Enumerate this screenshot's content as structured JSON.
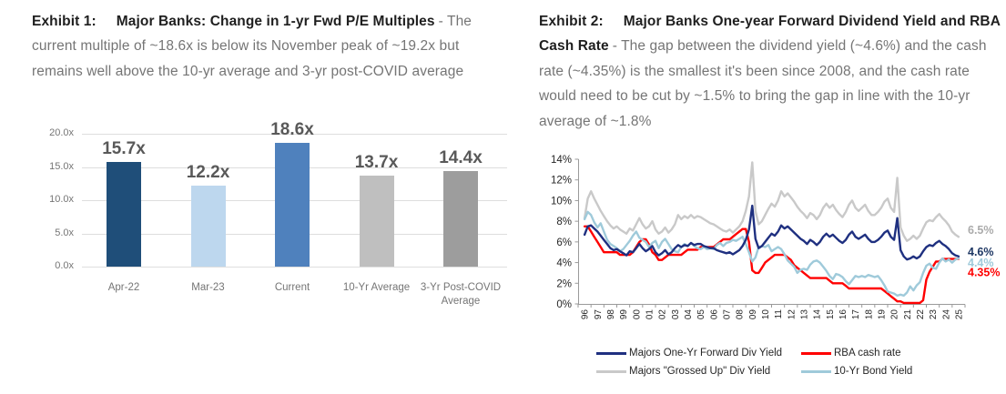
{
  "exhibit1": {
    "label": "Exhibit 1:",
    "title": "Major Banks: Change in 1-yr Fwd P/E Multiples",
    "description": "- The current multiple of ~18.6x is below its November peak of ~19.2x but remains well above the 10-yr average and 3-yr post-COVID average"
  },
  "exhibit2": {
    "label": "Exhibit 2:",
    "title": "Major Banks One-year Forward Dividend Yield and RBA Cash Rate",
    "description": "- The gap between the dividend yield (~4.6%) and the cash rate (~4.35%) is the smallest it's been since 2008, and the cash rate would need to be cut by ~1.5% to bring the gap in line with the 10-yr average of ~1.8%"
  },
  "chart_data": [
    {
      "type": "bar",
      "title": "Major Banks: Change in 1-yr Fwd P/E Multiples",
      "categories": [
        "Apr-22",
        "Mar-23",
        "Current",
        "10-Yr Average",
        "3-Yr Post-COVID Average"
      ],
      "values": [
        15.7,
        12.2,
        18.6,
        13.7,
        14.4
      ],
      "data_labels": [
        "15.7x",
        "12.2x",
        "18.6x",
        "13.7x",
        "14.4x"
      ],
      "bar_colors": [
        "#1f4e79",
        "#bdd7ee",
        "#4f81bd",
        "#bfbfbf",
        "#9d9d9d"
      ],
      "ylim": [
        0,
        20
      ],
      "y_ticks": [
        {
          "v": 0,
          "label": "0.0x"
        },
        {
          "v": 5,
          "label": "5.0x"
        },
        {
          "v": 10,
          "label": "10.0x"
        },
        {
          "v": 15,
          "label": "15.0x"
        },
        {
          "v": 20,
          "label": "20.0x"
        }
      ],
      "grid": true
    },
    {
      "type": "line",
      "title": "Major Banks One-year Forward Dividend Yield and RBA Cash Rate",
      "ylim": [
        0,
        14
      ],
      "y_ticks": [
        "0%",
        "2%",
        "4%",
        "6%",
        "8%",
        "10%",
        "12%",
        "14%"
      ],
      "x_tick_labels": [
        "96",
        "97",
        "98",
        "99",
        "00",
        "01",
        "02",
        "03",
        "04",
        "05",
        "06",
        "07",
        "08",
        "09",
        "10",
        "11",
        "12",
        "13",
        "14",
        "15",
        "16",
        "17",
        "18",
        "19",
        "20",
        "21",
        "22",
        "23",
        "24",
        "25"
      ],
      "x_range": [
        1996,
        2025
      ],
      "grid": false,
      "legend_position": "bottom",
      "series": [
        {
          "name": "Majors \"Grossed Up\" Div Yield",
          "color": "#c9c9c9",
          "end_label": "6.5%",
          "end_label_color": "#ababab",
          "x0": 1996,
          "dx": 0.25,
          "values": [
            8.3,
            10.2,
            10.9,
            10.2,
            9.6,
            9.0,
            8.5,
            8.0,
            7.6,
            7.3,
            7.5,
            7.2,
            7.0,
            6.8,
            7.3,
            7.1,
            7.7,
            8.3,
            7.7,
            7.3,
            7.5,
            8.0,
            7.2,
            6.8,
            7.0,
            7.4,
            6.9,
            7.2,
            7.7,
            8.6,
            8.2,
            8.5,
            8.3,
            8.6,
            8.3,
            8.5,
            8.4,
            8.2,
            8.0,
            7.8,
            7.7,
            7.5,
            7.3,
            7.1,
            7.0,
            7.2,
            6.9,
            7.2,
            7.5,
            8.0,
            9.0,
            10.4,
            13.7,
            9.0,
            7.7,
            8.0,
            8.6,
            9.2,
            9.7,
            9.4,
            10.0,
            10.9,
            10.4,
            10.7,
            10.3,
            9.9,
            9.4,
            9.0,
            8.7,
            8.3,
            8.8,
            8.6,
            8.2,
            8.6,
            9.3,
            9.7,
            9.3,
            9.6,
            9.1,
            8.7,
            8.4,
            8.9,
            9.6,
            10.0,
            9.3,
            9.0,
            9.3,
            9.6,
            9.0,
            8.6,
            8.6,
            8.9,
            9.3,
            9.9,
            10.2,
            9.3,
            8.9,
            12.2,
            7.4,
            6.6,
            6.1,
            6.3,
            6.6,
            6.3,
            6.6,
            7.3,
            7.9,
            8.1,
            8.0,
            8.4,
            8.7,
            8.3,
            8.0,
            7.6,
            7.0,
            6.7,
            6.5
          ]
        },
        {
          "name": "RBA cash rate",
          "color": "#ff0000",
          "end_label": "4.35%",
          "end_label_color": "#ff0000",
          "x0": 1996,
          "dx": 0.25,
          "values": [
            7.5,
            7.5,
            7.0,
            6.5,
            6.0,
            5.5,
            5.0,
            5.0,
            5.0,
            5.0,
            5.0,
            4.75,
            4.75,
            4.75,
            4.75,
            5.0,
            5.5,
            6.0,
            6.25,
            6.25,
            5.75,
            5.0,
            4.75,
            4.25,
            4.25,
            4.5,
            4.75,
            4.75,
            4.75,
            4.75,
            4.75,
            5.0,
            5.25,
            5.25,
            5.25,
            5.25,
            5.5,
            5.5,
            5.5,
            5.5,
            5.5,
            5.75,
            6.0,
            6.25,
            6.25,
            6.25,
            6.5,
            6.75,
            7.0,
            7.25,
            7.25,
            6.0,
            3.25,
            3.0,
            3.0,
            3.5,
            4.0,
            4.25,
            4.5,
            4.75,
            4.75,
            4.75,
            4.75,
            4.5,
            4.25,
            3.75,
            3.5,
            3.25,
            3.0,
            2.75,
            2.5,
            2.5,
            2.5,
            2.5,
            2.5,
            2.5,
            2.25,
            2.0,
            2.0,
            2.0,
            2.0,
            1.75,
            1.5,
            1.5,
            1.5,
            1.5,
            1.5,
            1.5,
            1.5,
            1.5,
            1.5,
            1.5,
            1.5,
            1.25,
            1.0,
            0.75,
            0.5,
            0.25,
            0.25,
            0.1,
            0.1,
            0.1,
            0.1,
            0.1,
            0.1,
            0.35,
            2.35,
            3.1,
            3.6,
            4.1,
            4.1,
            4.35,
            4.35,
            4.35,
            4.35,
            4.35,
            4.35
          ]
        },
        {
          "name": "10-Yr Bond Yield",
          "color": "#9fcada",
          "end_label": "4.4%",
          "end_label_color": "#9fcada",
          "x0": 1996,
          "dx": 0.25,
          "values": [
            8.2,
            8.9,
            8.6,
            7.9,
            7.4,
            7.8,
            7.0,
            6.2,
            5.8,
            5.6,
            5.4,
            5.1,
            5.3,
            5.7,
            6.1,
            6.6,
            7.0,
            6.4,
            6.2,
            6.0,
            5.5,
            5.9,
            6.1,
            5.4,
            6.0,
            6.3,
            5.8,
            5.3,
            5.1,
            5.0,
            5.5,
            5.8,
            5.6,
            5.9,
            5.6,
            5.4,
            5.3,
            5.5,
            5.3,
            5.4,
            5.3,
            5.7,
            5.9,
            5.6,
            5.9,
            6.0,
            6.2,
            6.1,
            6.3,
            6.5,
            5.8,
            5.0,
            4.1,
            4.5,
            5.5,
            5.6,
            5.5,
            5.7,
            5.1,
            5.3,
            5.5,
            5.3,
            4.8,
            4.2,
            3.9,
            3.6,
            3.0,
            3.3,
            3.4,
            3.3,
            3.8,
            4.1,
            4.2,
            4.0,
            3.6,
            3.2,
            2.7,
            2.4,
            2.9,
            2.8,
            2.6,
            2.2,
            1.9,
            2.3,
            2.7,
            2.6,
            2.7,
            2.6,
            2.8,
            2.7,
            2.6,
            2.7,
            2.3,
            1.8,
            1.2,
            1.1,
            1.0,
            0.8,
            0.9,
            0.8,
            1.1,
            1.7,
            1.3,
            1.8,
            2.1,
            3.0,
            3.7,
            3.9,
            3.5,
            3.4,
            4.0,
            4.4,
            4.1,
            4.3,
            4.0,
            4.3,
            4.4
          ]
        },
        {
          "name": "Majors One-Yr Forward Div Yield",
          "color": "#1f3080",
          "end_label": "4.6%",
          "end_label_color": "#1f3864",
          "x0": 1996,
          "dx": 0.25,
          "values": [
            6.7,
            7.5,
            7.6,
            7.3,
            7.0,
            6.6,
            6.2,
            5.8,
            5.4,
            5.2,
            5.3,
            5.1,
            4.9,
            4.7,
            5.1,
            5.0,
            5.4,
            5.8,
            5.4,
            5.1,
            5.3,
            5.6,
            5.0,
            4.7,
            4.9,
            5.2,
            4.8,
            5.0,
            5.4,
            5.7,
            5.5,
            5.7,
            5.6,
            5.9,
            5.7,
            5.8,
            5.8,
            5.6,
            5.5,
            5.4,
            5.4,
            5.2,
            5.1,
            5.0,
            4.9,
            5.0,
            4.8,
            5.0,
            5.2,
            5.6,
            6.2,
            7.2,
            9.5,
            6.3,
            5.4,
            5.6,
            6.0,
            6.4,
            6.8,
            6.6,
            7.0,
            7.6,
            7.3,
            7.5,
            7.2,
            6.9,
            6.6,
            6.3,
            6.1,
            5.8,
            6.2,
            6.0,
            5.7,
            6.0,
            6.5,
            6.8,
            6.5,
            6.7,
            6.4,
            6.1,
            5.9,
            6.2,
            6.7,
            7.0,
            6.5,
            6.3,
            6.5,
            6.7,
            6.3,
            6.0,
            6.0,
            6.2,
            6.5,
            6.9,
            7.1,
            6.5,
            6.2,
            8.3,
            5.2,
            4.6,
            4.3,
            4.4,
            4.6,
            4.4,
            4.6,
            5.1,
            5.5,
            5.7,
            5.6,
            5.9,
            6.1,
            5.8,
            5.6,
            5.3,
            4.9,
            4.7,
            4.6
          ]
        }
      ],
      "legend": [
        [
          {
            "label": "Majors One-Yr Forward Div Yield",
            "color": "#1f3080"
          },
          {
            "label": "RBA cash rate",
            "color": "#ff0000"
          }
        ],
        [
          {
            "label": "Majors \"Grossed Up\" Div Yield",
            "color": "#c9c9c9"
          },
          {
            "label": "10-Yr Bond Yield",
            "color": "#9fcada"
          }
        ]
      ]
    }
  ]
}
